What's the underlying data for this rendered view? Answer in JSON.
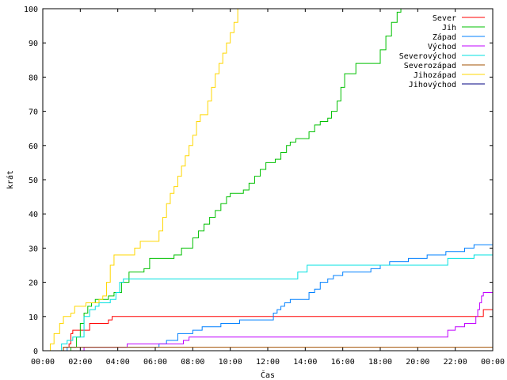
{
  "chart_data": {
    "type": "line",
    "title": "",
    "xlabel": "Čas",
    "ylabel": "krát",
    "xlim": [
      0,
      24
    ],
    "ylim": [
      0,
      100
    ],
    "grid": false,
    "legend_position": "top-right",
    "x_ticks": [
      0,
      2,
      4,
      6,
      8,
      10,
      12,
      14,
      16,
      18,
      20,
      22,
      24
    ],
    "x_tick_labels": [
      "00:00",
      "02:00",
      "04:00",
      "06:00",
      "08:00",
      "10:00",
      "12:00",
      "14:00",
      "16:00",
      "18:00",
      "20:00",
      "22:00",
      "00:00"
    ],
    "y_ticks": [
      0,
      10,
      20,
      30,
      40,
      50,
      60,
      70,
      80,
      90,
      100
    ],
    "y_tick_labels": [
      "0",
      "10",
      "20",
      "30",
      "40",
      "50",
      "60",
      "70",
      "80",
      "90",
      "100"
    ],
    "series": [
      {
        "name": "Sever",
        "color": "#ff0000",
        "x": [
          0,
          1.0,
          1.1,
          1.4,
          1.5,
          1.6,
          2.4,
          2.5,
          3.3,
          3.5,
          3.7,
          4.0,
          10,
          16,
          22,
          23.3,
          23.5,
          24
        ],
        "y": [
          0,
          0,
          1,
          2,
          5,
          6,
          6,
          8,
          8,
          9,
          10,
          10,
          10,
          10,
          10,
          10,
          12,
          12
        ]
      },
      {
        "name": "Jih",
        "color": "#00c000",
        "x": [
          0,
          1.2,
          1.5,
          1.8,
          2.0,
          2.2,
          2.4,
          2.6,
          2.8,
          3.0,
          3.3,
          3.5,
          3.8,
          4.2,
          4.6,
          4.8,
          5.1,
          5.4,
          5.7,
          6.0,
          6.5,
          7.0,
          7.2,
          7.4,
          7.7,
          8.0,
          8.3,
          8.6,
          8.9,
          9.2,
          9.5,
          9.8,
          10.0,
          10.3,
          10.7,
          11.0,
          11.3,
          11.6,
          11.9,
          12.1,
          12.4,
          12.7,
          13.0,
          13.2,
          13.5,
          13.9,
          14.2,
          14.5,
          14.8,
          15.0,
          15.2,
          15.4,
          15.7,
          15.9,
          16.1,
          16.4,
          16.7,
          17.0,
          17.3,
          17.6,
          18.0,
          18.3,
          18.6,
          18.9,
          19.1
        ],
        "y": [
          0,
          0,
          1,
          4,
          8,
          11,
          13,
          14,
          15,
          15,
          15,
          16,
          17,
          20,
          23,
          23,
          23,
          24,
          27,
          27,
          27,
          28,
          28,
          30,
          30,
          33,
          35,
          37,
          39,
          41,
          43,
          45,
          46,
          46,
          47,
          49,
          51,
          53,
          55,
          55,
          56,
          58,
          60,
          61,
          62,
          62,
          64,
          66,
          67,
          67,
          68,
          70,
          73,
          77,
          81,
          81,
          84,
          84,
          84,
          84,
          88,
          92,
          96,
          99,
          100
        ]
      },
      {
        "name": "Západ",
        "color": "#0080ff",
        "x": [
          0,
          1.2,
          1.3,
          2.0,
          4.0,
          6.0,
          6.2,
          6.6,
          7.2,
          8.0,
          8.5,
          9.5,
          10.5,
          11.5,
          12.3,
          12.5,
          12.7,
          12.9,
          13.2,
          13.8,
          14.2,
          14.5,
          14.8,
          15.2,
          15.5,
          16.0,
          17.0,
          17.5,
          18.0,
          18.5,
          19.5,
          20.5,
          21.5,
          22.0,
          22.5,
          23.0,
          24
        ],
        "y": [
          0,
          0,
          1,
          1,
          1,
          1,
          2,
          3,
          5,
          6,
          7,
          8,
          9,
          9,
          11,
          12,
          13,
          14,
          15,
          15,
          17,
          18,
          20,
          21,
          22,
          23,
          23,
          24,
          25,
          26,
          27,
          28,
          29,
          29,
          30,
          31,
          31
        ]
      },
      {
        "name": "Východ",
        "color": "#c000ff",
        "x": [
          0,
          2.0,
          2.2,
          4.0,
          4.3,
          4.5,
          5.5,
          6.0,
          7.0,
          7.5,
          7.8,
          8.0,
          10,
          12,
          14,
          16,
          18,
          20,
          21.5,
          21.6,
          22.0,
          22.5,
          23.0,
          23.1,
          23.2,
          23.3,
          23.4,
          23.5,
          24
        ],
        "y": [
          0,
          0,
          1,
          1,
          1,
          2,
          2,
          2,
          2,
          3,
          4,
          4,
          4,
          4,
          4,
          4,
          4,
          4,
          4,
          6,
          7,
          8,
          8,
          10,
          12,
          14,
          16,
          17,
          17
        ]
      },
      {
        "name": "Severovýchod",
        "color": "#00e0e0",
        "x": [
          0,
          0.9,
          1.0,
          1.3,
          1.6,
          1.9,
          2.2,
          2.5,
          2.8,
          3.0,
          3.3,
          3.6,
          3.9,
          4.1,
          4.3,
          4.6,
          5.0,
          6.0,
          8.0,
          10,
          12,
          13.5,
          13.6,
          14.0,
          14.1,
          16.0,
          18.0,
          20.0,
          21.5,
          21.6,
          22.0,
          23.0,
          24
        ],
        "y": [
          0,
          0,
          2,
          3,
          4,
          4,
          10,
          12,
          13,
          14,
          14,
          15,
          17,
          20,
          21,
          21,
          21,
          21,
          21,
          21,
          21,
          21,
          23,
          23,
          25,
          25,
          25,
          25,
          25,
          27,
          27,
          28,
          28
        ]
      },
      {
        "name": "Severozápad",
        "color": "#a05000",
        "x": [
          0,
          1.0,
          1.1,
          24
        ],
        "y": [
          0,
          0,
          1,
          1
        ]
      },
      {
        "name": "Jihozápad",
        "color": "#ffd700",
        "x": [
          0,
          0.2,
          0.4,
          0.6,
          0.9,
          1.1,
          1.5,
          1.7,
          2.3,
          2.8,
          3.0,
          3.2,
          3.4,
          3.6,
          3.8,
          4.0,
          4.5,
          4.9,
          5.2,
          5.5,
          6.0,
          6.2,
          6.4,
          6.6,
          6.8,
          7.0,
          7.2,
          7.4,
          7.6,
          7.8,
          8.0,
          8.2,
          8.4,
          8.6,
          8.8,
          9.0,
          9.2,
          9.4,
          9.6,
          9.8,
          10.0,
          10.2,
          10.4
        ],
        "y": [
          0,
          0,
          2,
          5,
          8,
          10,
          11,
          13,
          14,
          14,
          15,
          16,
          20,
          25,
          28,
          28,
          28,
          30,
          32,
          32,
          32,
          35,
          39,
          43,
          46,
          48,
          51,
          54,
          57,
          60,
          63,
          67,
          69,
          69,
          73,
          77,
          81,
          84,
          87,
          90,
          93,
          96,
          100
        ]
      },
      {
        "name": "Jihovýchod",
        "color": "#000080",
        "x": [
          0,
          2.0,
          24
        ],
        "y": [
          0,
          0,
          0
        ]
      }
    ]
  }
}
